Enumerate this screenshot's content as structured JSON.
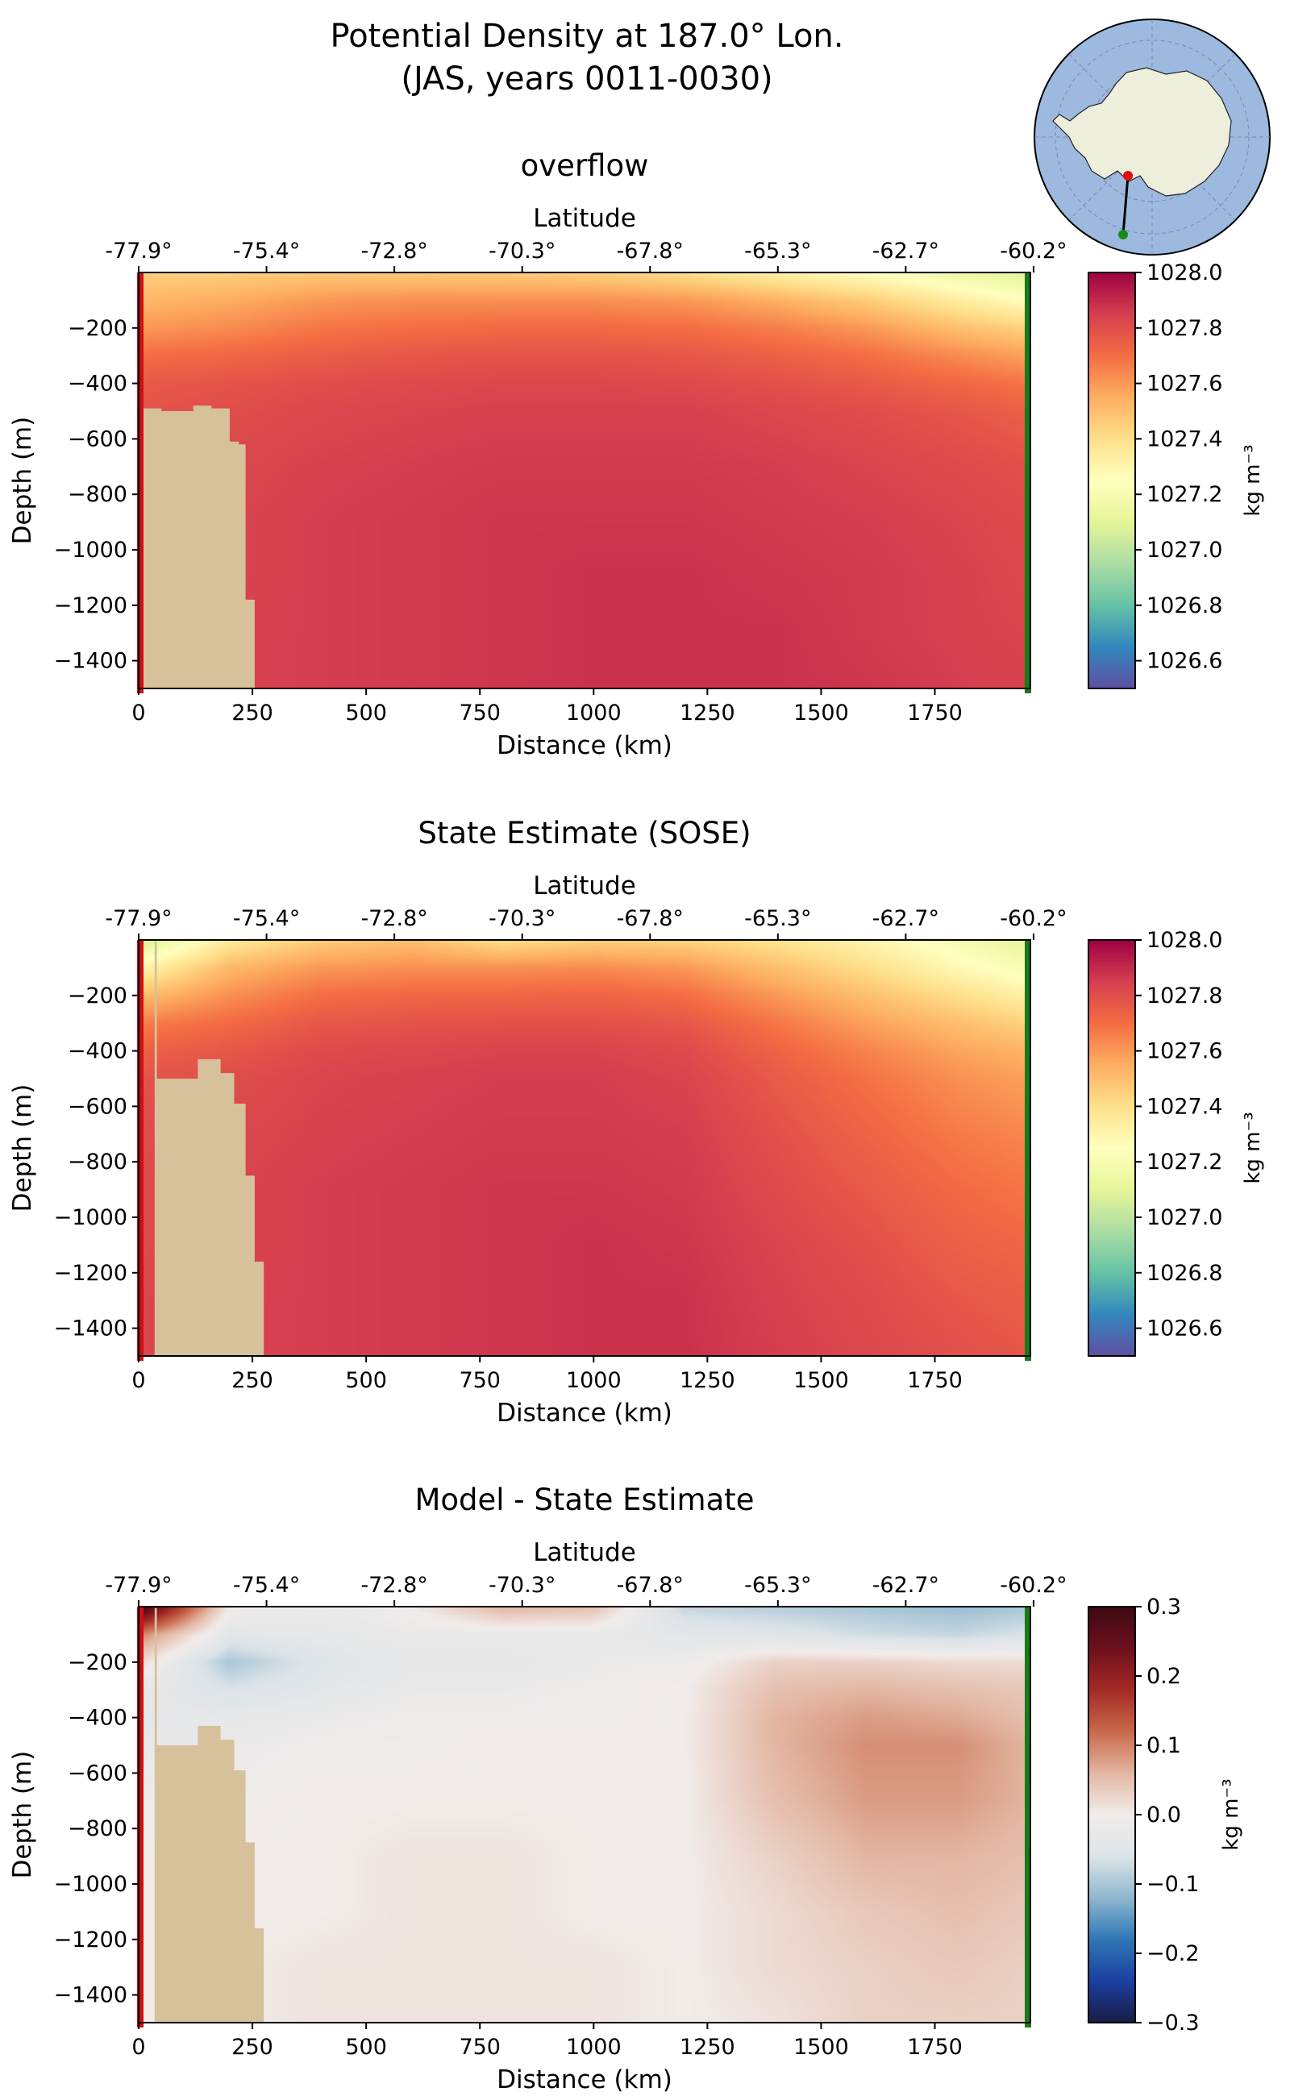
{
  "figure": {
    "title_line1": "Potential Density at 187.0° Lon.",
    "title_line2": "(JAS, years 0011-0030)"
  },
  "colors": {
    "land": "#d6c19a",
    "start_marker": "#d01010",
    "end_marker": "#1a7a1a",
    "ocean_map": "#9db9e0",
    "continent_map": "#eeeedd",
    "section_line": "#000000"
  },
  "chart_data": [
    {
      "type": "heatmap",
      "title": "overflow",
      "xlabel": "Distance (km)",
      "ylabel": "Depth (m)",
      "top_axis_label": "Latitude",
      "xlim": [
        0,
        1960
      ],
      "ylim": [
        -1500,
        0
      ],
      "x_ticks": [
        0,
        250,
        500,
        750,
        1000,
        1250,
        1500,
        1750
      ],
      "x_tick_labels": [
        "0",
        "250",
        "500",
        "750",
        "1000",
        "1250",
        "1500",
        "1750"
      ],
      "y_ticks": [
        -200,
        -400,
        -600,
        -800,
        -1000,
        -1200,
        -1400
      ],
      "y_tick_labels": [
        "−200",
        "−400",
        "−600",
        "−800",
        "−1000",
        "−1200",
        "−1400"
      ],
      "lat_tick_positions_km": [
        0,
        281,
        562,
        843,
        1124,
        1405,
        1686,
        1967
      ],
      "lat_tick_labels": [
        "-77.9°",
        "-75.4°",
        "-72.8°",
        "-70.3°",
        "-67.8°",
        "-65.3°",
        "-62.7°",
        "-60.2°"
      ],
      "colorbar": {
        "colormap": "Spectral_r",
        "vmin": 1026.5,
        "vmax": 1028.0,
        "ticks": [
          1028.0,
          1027.8,
          1027.6,
          1027.4,
          1027.2,
          1027.0,
          1026.8,
          1026.6
        ],
        "tick_labels": [
          "1028.0",
          "1027.8",
          "1027.6",
          "1027.4",
          "1027.2",
          "1027.0",
          "1026.8",
          "1026.6"
        ],
        "label": "kg m⁻³",
        "stops": [
          "#5e4fa2",
          "#3288bd",
          "#66c2a5",
          "#abdda4",
          "#e6f598",
          "#ffffbf",
          "#fee08b",
          "#fdae61",
          "#f46d43",
          "#d53e4f",
          "#9e0142"
        ]
      },
      "field": {
        "x_km": [
          0,
          200,
          400,
          600,
          800,
          1000,
          1200,
          1400,
          1600,
          1800,
          1960
        ],
        "depth_m": [
          0,
          100,
          200,
          300,
          400,
          500,
          700,
          900,
          1100,
          1300,
          1500
        ],
        "values": [
          [
            1027.45,
            1027.45,
            1027.47,
            1027.47,
            1027.46,
            1027.45,
            1027.4,
            1027.32,
            1027.25,
            1027.15,
            1027.08
          ],
          [
            1027.52,
            1027.55,
            1027.6,
            1027.62,
            1027.62,
            1027.62,
            1027.6,
            1027.54,
            1027.46,
            1027.34,
            1027.25
          ],
          [
            1027.6,
            1027.63,
            1027.68,
            1027.7,
            1027.71,
            1027.71,
            1027.7,
            1027.66,
            1027.6,
            1027.5,
            1027.44
          ],
          [
            1027.7,
            1027.72,
            1027.75,
            1027.77,
            1027.78,
            1027.78,
            1027.77,
            1027.74,
            1027.7,
            1027.63,
            1027.58
          ],
          [
            1027.76,
            1027.78,
            1027.8,
            1027.81,
            1027.82,
            1027.82,
            1027.81,
            1027.79,
            1027.76,
            1027.72,
            1027.68
          ],
          [
            1027.78,
            1027.8,
            1027.82,
            1027.83,
            1027.84,
            1027.84,
            1027.84,
            1027.82,
            1027.8,
            1027.77,
            1027.74
          ],
          [
            1027.8,
            1027.82,
            1027.84,
            1027.85,
            1027.86,
            1027.86,
            1027.86,
            1027.85,
            1027.83,
            1027.81,
            1027.79
          ],
          [
            1027.81,
            1027.83,
            1027.85,
            1027.86,
            1027.87,
            1027.87,
            1027.87,
            1027.86,
            1027.85,
            1027.83,
            1027.81
          ],
          [
            1027.81,
            1027.83,
            1027.85,
            1027.86,
            1027.87,
            1027.88,
            1027.88,
            1027.87,
            1027.86,
            1027.84,
            1027.82
          ],
          [
            1027.82,
            1027.84,
            1027.85,
            1027.86,
            1027.87,
            1027.88,
            1027.88,
            1027.88,
            1027.86,
            1027.84,
            1027.83
          ],
          [
            1027.82,
            1027.84,
            1027.85,
            1027.86,
            1027.87,
            1027.88,
            1027.88,
            1027.88,
            1027.87,
            1027.85,
            1027.84
          ]
        ]
      },
      "bathymetry": {
        "x_km": [
          0,
          10,
          10,
          50,
          50,
          80,
          80,
          120,
          120,
          160,
          160,
          200,
          200,
          220,
          220,
          235,
          235,
          255,
          255
        ],
        "depth_m": [
          -1500,
          -1500,
          -490,
          -490,
          -500,
          -500,
          -500,
          -500,
          -480,
          -480,
          -490,
          -490,
          -610,
          -610,
          -620,
          -620,
          -1180,
          -1180,
          -1500
        ]
      }
    },
    {
      "type": "heatmap",
      "title": "State Estimate (SOSE)",
      "xlabel": "Distance (km)",
      "ylabel": "Depth (m)",
      "top_axis_label": "Latitude",
      "xlim": [
        0,
        1960
      ],
      "ylim": [
        -1500,
        0
      ],
      "x_ticks": [
        0,
        250,
        500,
        750,
        1000,
        1250,
        1500,
        1750
      ],
      "x_tick_labels": [
        "0",
        "250",
        "500",
        "750",
        "1000",
        "1250",
        "1500",
        "1750"
      ],
      "y_ticks": [
        -200,
        -400,
        -600,
        -800,
        -1000,
        -1200,
        -1400
      ],
      "y_tick_labels": [
        "−200",
        "−400",
        "−600",
        "−800",
        "−1000",
        "−1200",
        "−1400"
      ],
      "lat_tick_positions_km": [
        0,
        281,
        562,
        843,
        1124,
        1405,
        1686,
        1967
      ],
      "lat_tick_labels": [
        "-77.9°",
        "-75.4°",
        "-72.8°",
        "-70.3°",
        "-67.8°",
        "-65.3°",
        "-62.7°",
        "-60.2°"
      ],
      "colorbar": {
        "colormap": "Spectral_r",
        "vmin": 1026.5,
        "vmax": 1028.0,
        "ticks": [
          1028.0,
          1027.8,
          1027.6,
          1027.4,
          1027.2,
          1027.0,
          1026.8,
          1026.6
        ],
        "tick_labels": [
          "1028.0",
          "1027.8",
          "1027.6",
          "1027.4",
          "1027.2",
          "1027.0",
          "1026.8",
          "1026.6"
        ],
        "label": "kg m⁻³",
        "stops": [
          "#5e4fa2",
          "#3288bd",
          "#66c2a5",
          "#abdda4",
          "#e6f598",
          "#ffffbf",
          "#fee08b",
          "#fdae61",
          "#f46d43",
          "#d53e4f",
          "#9e0142"
        ]
      },
      "field": {
        "x_km": [
          0,
          200,
          400,
          600,
          800,
          1000,
          1200,
          1400,
          1600,
          1800,
          1960
        ],
        "depth_m": [
          0,
          100,
          200,
          300,
          400,
          500,
          700,
          900,
          1100,
          1300,
          1500
        ],
        "values": [
          [
            1027.05,
            1027.35,
            1027.46,
            1027.5,
            1027.4,
            1027.45,
            1027.44,
            1027.38,
            1027.3,
            1027.2,
            1027.1
          ],
          [
            1027.3,
            1027.52,
            1027.6,
            1027.62,
            1027.62,
            1027.63,
            1027.6,
            1027.5,
            1027.4,
            1027.28,
            1027.2
          ],
          [
            1027.5,
            1027.62,
            1027.7,
            1027.72,
            1027.72,
            1027.73,
            1027.7,
            1027.6,
            1027.5,
            1027.4,
            1027.32
          ],
          [
            1027.66,
            1027.71,
            1027.77,
            1027.78,
            1027.79,
            1027.79,
            1027.77,
            1027.68,
            1027.58,
            1027.5,
            1027.44
          ],
          [
            1027.74,
            1027.77,
            1027.81,
            1027.82,
            1027.83,
            1027.83,
            1027.81,
            1027.73,
            1027.65,
            1027.57,
            1027.53
          ],
          [
            1027.78,
            1027.8,
            1027.83,
            1027.84,
            1027.85,
            1027.85,
            1027.83,
            1027.76,
            1027.69,
            1027.62,
            1027.58
          ],
          [
            1027.8,
            1027.82,
            1027.84,
            1027.85,
            1027.86,
            1027.86,
            1027.85,
            1027.79,
            1027.73,
            1027.67,
            1027.64
          ],
          [
            1027.81,
            1027.83,
            1027.85,
            1027.86,
            1027.87,
            1027.87,
            1027.86,
            1027.81,
            1027.76,
            1027.71,
            1027.68
          ],
          [
            1027.81,
            1027.83,
            1027.85,
            1027.86,
            1027.87,
            1027.88,
            1027.87,
            1027.83,
            1027.79,
            1027.74,
            1027.72
          ],
          [
            1027.82,
            1027.84,
            1027.85,
            1027.86,
            1027.87,
            1027.88,
            1027.88,
            1027.84,
            1027.81,
            1027.77,
            1027.75
          ],
          [
            1027.82,
            1027.84,
            1027.85,
            1027.86,
            1027.87,
            1027.88,
            1027.88,
            1027.85,
            1027.82,
            1027.79,
            1027.77
          ]
        ]
      },
      "bathymetry": {
        "x_km": [
          0,
          35,
          35,
          40,
          40,
          75,
          75,
          90,
          90,
          130,
          130,
          180,
          180,
          210,
          210,
          235,
          235,
          255,
          255,
          275,
          275
        ],
        "depth_m": [
          -1500,
          -1500,
          -5,
          -5,
          -500,
          -500,
          -500,
          -500,
          -500,
          -500,
          -430,
          -430,
          -480,
          -480,
          -590,
          -590,
          -850,
          -850,
          -1160,
          -1160,
          -1500
        ]
      }
    },
    {
      "type": "heatmap",
      "title": "Model - State Estimate",
      "xlabel": "Distance (km)",
      "ylabel": "Depth (m)",
      "top_axis_label": "Latitude",
      "xlim": [
        0,
        1960
      ],
      "ylim": [
        -1500,
        0
      ],
      "x_ticks": [
        0,
        250,
        500,
        750,
        1000,
        1250,
        1500,
        1750
      ],
      "x_tick_labels": [
        "0",
        "250",
        "500",
        "750",
        "1000",
        "1250",
        "1500",
        "1750"
      ],
      "y_ticks": [
        -200,
        -400,
        -600,
        -800,
        -1000,
        -1200,
        -1400
      ],
      "y_tick_labels": [
        "−200",
        "−400",
        "−600",
        "−800",
        "−1000",
        "−1200",
        "−1400"
      ],
      "lat_tick_positions_km": [
        0,
        281,
        562,
        843,
        1124,
        1405,
        1686,
        1967
      ],
      "lat_tick_labels": [
        "-77.9°",
        "-75.4°",
        "-72.8°",
        "-70.3°",
        "-67.8°",
        "-65.3°",
        "-62.7°",
        "-60.2°"
      ],
      "colorbar": {
        "colormap": "balance",
        "vmin": -0.3,
        "vmax": 0.3,
        "ticks": [
          0.3,
          0.2,
          0.1,
          0.0,
          -0.1,
          -0.2,
          -0.3
        ],
        "tick_labels": [
          "0.3",
          "0.2",
          "0.1",
          "0.0",
          "−0.1",
          "−0.2",
          "−0.3"
        ],
        "label": "kg m⁻³",
        "stops": [
          "#181c43",
          "#1b3fa0",
          "#2f77b5",
          "#8fb7cf",
          "#dde4e8",
          "#f1ecea",
          "#e3b6a2",
          "#c9684b",
          "#a42a25",
          "#6d0f1c",
          "#3c0912"
        ]
      },
      "field": {
        "x_km": [
          0,
          200,
          400,
          600,
          800,
          1000,
          1200,
          1400,
          1600,
          1800,
          1960
        ],
        "depth_m": [
          0,
          100,
          200,
          300,
          400,
          500,
          700,
          900,
          1100,
          1300,
          1500
        ],
        "values": [
          [
            0.3,
            0.0,
            -0.02,
            0.0,
            0.06,
            0.05,
            -0.08,
            -0.09,
            -0.1,
            -0.11,
            -0.1
          ],
          [
            0.1,
            -0.04,
            -0.03,
            -0.02,
            -0.02,
            -0.02,
            -0.04,
            -0.05,
            -0.07,
            -0.08,
            -0.06
          ],
          [
            0.02,
            -0.1,
            -0.05,
            -0.03,
            -0.03,
            -0.02,
            -0.01,
            0.03,
            0.03,
            0.02,
            0.02
          ],
          [
            -0.03,
            -0.06,
            -0.04,
            -0.02,
            -0.02,
            -0.01,
            0.0,
            0.05,
            0.06,
            0.05,
            0.04
          ],
          [
            -0.04,
            -0.03,
            -0.02,
            -0.01,
            -0.01,
            -0.01,
            0.0,
            0.06,
            0.08,
            0.07,
            0.05
          ],
          [
            -0.03,
            -0.02,
            -0.01,
            -0.01,
            0.0,
            0.0,
            0.0,
            0.06,
            0.09,
            0.09,
            0.06
          ],
          [
            -0.01,
            -0.01,
            0.0,
            0.0,
            0.0,
            0.0,
            0.0,
            0.05,
            0.08,
            0.08,
            0.06
          ],
          [
            0.0,
            0.0,
            0.0,
            0.01,
            0.01,
            0.0,
            0.0,
            0.03,
            0.06,
            0.06,
            0.05
          ],
          [
            0.0,
            0.0,
            0.0,
            0.01,
            0.01,
            0.0,
            0.0,
            0.02,
            0.04,
            0.05,
            0.04
          ],
          [
            0.0,
            0.0,
            0.01,
            0.01,
            0.01,
            0.01,
            0.0,
            0.02,
            0.03,
            0.04,
            0.03
          ],
          [
            0.0,
            0.0,
            0.01,
            0.01,
            0.01,
            0.01,
            0.0,
            0.01,
            0.03,
            0.03,
            0.03
          ]
        ]
      },
      "bathymetry": {
        "x_km": [
          0,
          35,
          35,
          40,
          40,
          75,
          75,
          90,
          90,
          130,
          130,
          180,
          180,
          210,
          210,
          235,
          235,
          255,
          255,
          275,
          275
        ],
        "depth_m": [
          -1500,
          -1500,
          -5,
          -5,
          -500,
          -500,
          -500,
          -500,
          -500,
          -500,
          -430,
          -430,
          -480,
          -480,
          -590,
          -590,
          -850,
          -850,
          -1160,
          -1160,
          -1500
        ]
      }
    }
  ]
}
